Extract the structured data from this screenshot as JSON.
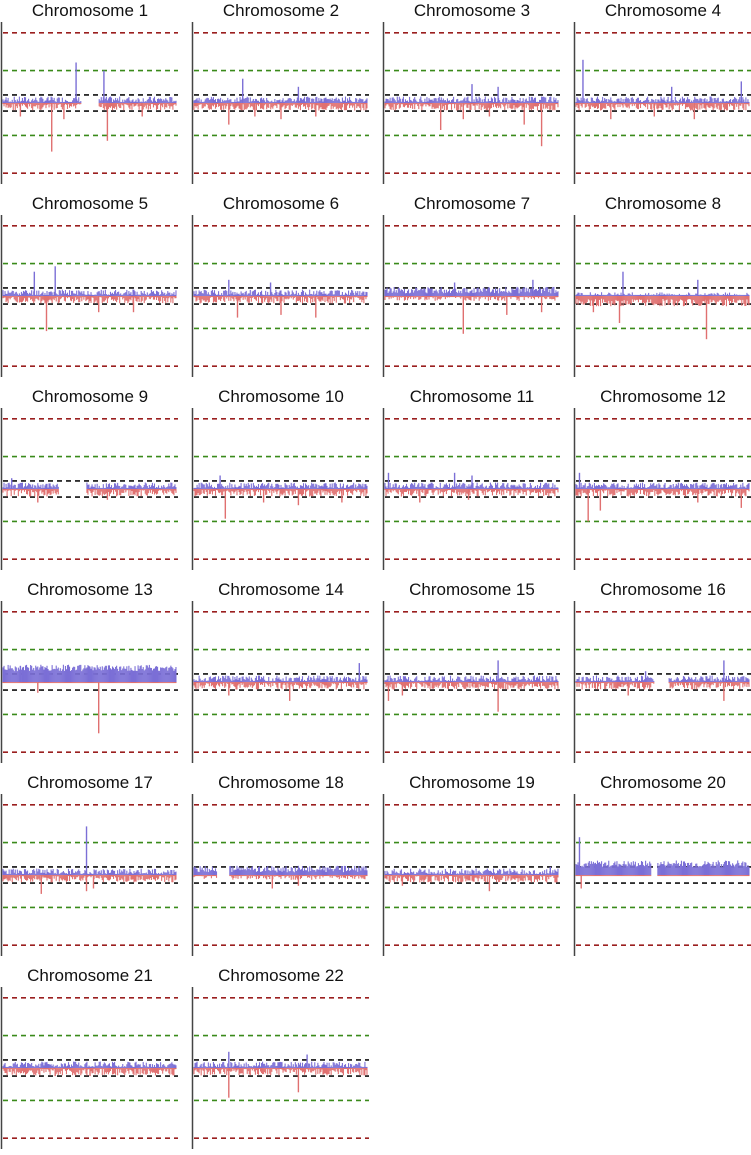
{
  "figure": {
    "colors": {
      "gain": "#7b6fd6",
      "loss": "#e07070",
      "inner_threshold": "#111111",
      "mid_threshold": "#3a8a1a",
      "outer_threshold": "#9a1f1f",
      "axis": "#444444"
    }
  },
  "chart_data": {
    "type": "area",
    "description_note": "Per-chromosome copy-number log-ratio profiles. Positive deviations are blue, negative are red. Dashed lines are thresholds.",
    "ylim": [
      -1.5,
      1.5
    ],
    "thresholds": {
      "inner": 0.15,
      "mid": 0.6,
      "outer": 1.3
    },
    "chromosomes": [
      {
        "name": "Chromosome 1",
        "gaps": [
          [
            0.45,
            0.55
          ]
        ],
        "baseline": 0.0,
        "spikes": [
          [
            0.42,
            0.75
          ],
          [
            0.58,
            0.6
          ],
          [
            0.1,
            -0.25
          ],
          [
            0.28,
            -0.9
          ],
          [
            0.35,
            -0.3
          ],
          [
            0.6,
            -0.7
          ],
          [
            0.8,
            -0.25
          ]
        ]
      },
      {
        "name": "Chromosome 2",
        "gaps": [],
        "baseline": 0.0,
        "spikes": [
          [
            0.28,
            0.45
          ],
          [
            0.6,
            0.3
          ],
          [
            0.2,
            -0.4
          ],
          [
            0.35,
            -0.25
          ],
          [
            0.5,
            -0.3
          ],
          [
            0.7,
            -0.25
          ]
        ]
      },
      {
        "name": "Chromosome 3",
        "gaps": [],
        "baseline": 0.0,
        "spikes": [
          [
            0.5,
            0.35
          ],
          [
            0.65,
            0.3
          ],
          [
            0.32,
            -0.5
          ],
          [
            0.45,
            -0.3
          ],
          [
            0.6,
            -0.25
          ],
          [
            0.9,
            -0.8
          ],
          [
            0.8,
            -0.4
          ]
        ]
      },
      {
        "name": "Chromosome 4",
        "gaps": [],
        "baseline": 0.0,
        "spikes": [
          [
            0.04,
            0.8
          ],
          [
            0.55,
            0.3
          ],
          [
            0.95,
            0.4
          ],
          [
            0.2,
            -0.3
          ],
          [
            0.45,
            -0.25
          ],
          [
            0.68,
            -0.3
          ]
        ]
      },
      {
        "name": "Chromosome 5",
        "gaps": [],
        "baseline": 0.0,
        "spikes": [
          [
            0.18,
            0.45
          ],
          [
            0.3,
            0.55
          ],
          [
            0.25,
            -0.65
          ],
          [
            0.55,
            -0.3
          ],
          [
            0.75,
            -0.3
          ]
        ]
      },
      {
        "name": "Chromosome 6",
        "gaps": [],
        "baseline": 0.0,
        "spikes": [
          [
            0.2,
            0.3
          ],
          [
            0.44,
            0.25
          ],
          [
            0.25,
            -0.4
          ],
          [
            0.5,
            -0.35
          ],
          [
            0.7,
            -0.4
          ]
        ]
      },
      {
        "name": "Chromosome 7",
        "gaps": [],
        "baseline": 0.05,
        "spikes": [
          [
            0.4,
            0.25
          ],
          [
            0.85,
            0.3
          ],
          [
            0.45,
            -0.7
          ],
          [
            0.7,
            -0.35
          ],
          [
            0.9,
            -0.3
          ]
        ]
      },
      {
        "name": "Chromosome 8",
        "gaps": [],
        "baseline": -0.05,
        "spikes": [
          [
            0.27,
            0.45
          ],
          [
            0.7,
            0.3
          ],
          [
            0.25,
            -0.5
          ],
          [
            0.75,
            -0.8
          ],
          [
            0.1,
            -0.3
          ]
        ]
      },
      {
        "name": "Chromosome 9",
        "gaps": [
          [
            0.32,
            0.48
          ]
        ],
        "baseline": 0.0,
        "spikes": [
          [
            0.05,
            0.2
          ],
          [
            0.2,
            -0.25
          ],
          [
            0.6,
            -0.2
          ]
        ]
      },
      {
        "name": "Chromosome 10",
        "gaps": [],
        "baseline": 0.0,
        "spikes": [
          [
            0.15,
            0.25
          ],
          [
            0.18,
            -0.55
          ],
          [
            0.4,
            -0.25
          ],
          [
            0.6,
            -0.3
          ],
          [
            0.85,
            -0.25
          ]
        ]
      },
      {
        "name": "Chromosome 11",
        "gaps": [],
        "baseline": 0.0,
        "spikes": [
          [
            0.02,
            0.3
          ],
          [
            0.4,
            0.3
          ],
          [
            0.5,
            0.25
          ],
          [
            0.2,
            -0.25
          ],
          [
            0.48,
            -0.2
          ]
        ]
      },
      {
        "name": "Chromosome 12",
        "gaps": [],
        "baseline": 0.0,
        "spikes": [
          [
            0.02,
            0.3
          ],
          [
            0.07,
            -0.6
          ],
          [
            0.14,
            -0.4
          ],
          [
            0.7,
            -0.25
          ],
          [
            0.95,
            -0.35
          ]
        ]
      },
      {
        "name": "Chromosome 13",
        "gaps": [],
        "baseline": 0.2,
        "spikes": [
          [
            0.1,
            0.3
          ],
          [
            0.55,
            -0.95
          ],
          [
            0.2,
            -0.2
          ]
        ]
      },
      {
        "name": "Chromosome 14",
        "gaps": [],
        "baseline": 0.0,
        "spikes": [
          [
            0.55,
            -0.35
          ],
          [
            0.2,
            -0.25
          ],
          [
            0.95,
            0.35
          ]
        ]
      },
      {
        "name": "Chromosome 15",
        "gaps": [],
        "baseline": 0.0,
        "spikes": [
          [
            0.65,
            0.4
          ],
          [
            0.65,
            -0.55
          ],
          [
            0.02,
            -0.35
          ],
          [
            0.1,
            -0.25
          ]
        ]
      },
      {
        "name": "Chromosome 16",
        "gaps": [
          [
            0.45,
            0.53
          ]
        ],
        "baseline": 0.0,
        "spikes": [
          [
            0.85,
            0.4
          ],
          [
            0.4,
            0.2
          ],
          [
            0.85,
            -0.35
          ],
          [
            0.3,
            -0.25
          ]
        ]
      },
      {
        "name": "Chromosome 17",
        "gaps": [],
        "baseline": 0.0,
        "spikes": [
          [
            0.48,
            0.9
          ],
          [
            0.22,
            -0.35
          ],
          [
            0.48,
            -0.3
          ],
          [
            0.52,
            -0.25
          ]
        ]
      },
      {
        "name": "Chromosome 18",
        "gaps": [
          [
            0.13,
            0.2
          ]
        ],
        "baseline": 0.05,
        "spikes": [
          [
            0.45,
            -0.25
          ],
          [
            0.6,
            -0.2
          ]
        ]
      },
      {
        "name": "Chromosome 19",
        "gaps": [],
        "baseline": 0.0,
        "spikes": [
          [
            0.6,
            -0.3
          ],
          [
            0.1,
            -0.2
          ],
          [
            0.95,
            0.15
          ]
        ]
      },
      {
        "name": "Chromosome 20",
        "gaps": [
          [
            0.43,
            0.47
          ]
        ],
        "baseline": 0.15,
        "spikes": [
          [
            0.02,
            0.7
          ],
          [
            0.03,
            -0.25
          ]
        ]
      },
      {
        "name": "Chromosome 21",
        "gaps": [],
        "baseline": 0.0,
        "spikes": [
          [
            0.3,
            -0.15
          ],
          [
            0.5,
            -0.15
          ]
        ]
      },
      {
        "name": "Chromosome 22",
        "gaps": [],
        "baseline": 0.0,
        "spikes": [
          [
            0.2,
            0.3
          ],
          [
            0.2,
            -0.55
          ],
          [
            0.6,
            -0.45
          ],
          [
            0.65,
            0.25
          ]
        ]
      }
    ]
  }
}
